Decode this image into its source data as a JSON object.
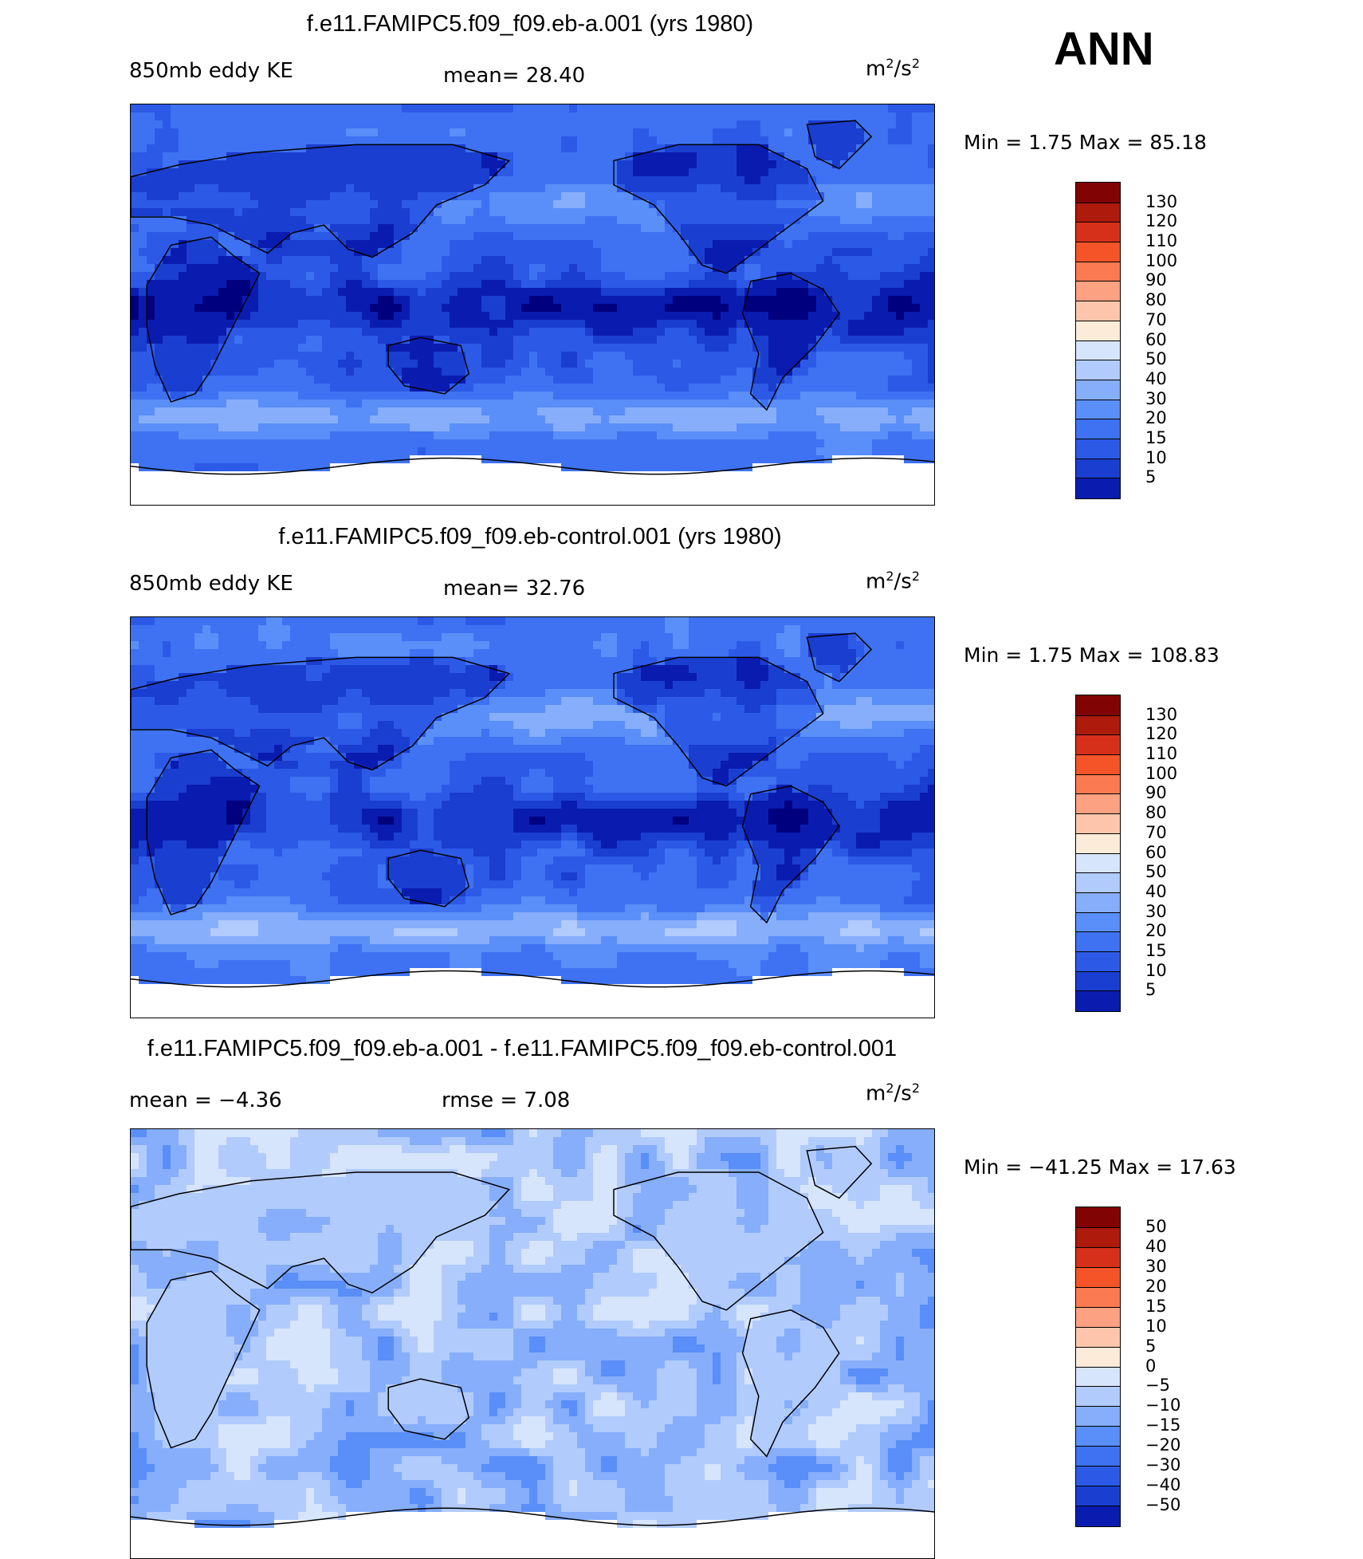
{
  "season": "ANN",
  "colors": {
    "scale": [
      "#00007e",
      "#0a1cb0",
      "#1a3ed0",
      "#2c5ae6",
      "#3e72f2",
      "#5a8ef8",
      "#86aefb",
      "#b1cbfc",
      "#d6e5fc",
      "#fcebd8",
      "#fdc6ac",
      "#fca182",
      "#fb7a52",
      "#f45428",
      "#d7301a",
      "#ae1a0c",
      "#820303"
    ],
    "land_mask": "#ffffff",
    "coast": "#000000"
  },
  "panels": [
    {
      "id": "top",
      "title": "f.e11.FAMIPC5.f09_f09.eb-a.001 (yrs 1980)",
      "left_label": "850mb  eddy  KE",
      "stat_label": "mean=   28.40",
      "units_base": "m",
      "units_sup1": "2",
      "units_mid": "/s",
      "units_sup2": "2",
      "minmax": "Min  =     1.75  Max  =   85.18",
      "colorbar_levels": [
        "130",
        "120",
        "110",
        "100",
        "90",
        "80",
        "70",
        "60",
        "50",
        "40",
        "30",
        "20",
        "15",
        "10",
        "5"
      ],
      "field": {
        "base": 20,
        "tropic": -13,
        "stormN": 34,
        "stormS": 44,
        "polarN": 14,
        "polarS": 18,
        "noise": 7
      }
    },
    {
      "id": "middle",
      "title": "f.e11.FAMIPC5.f09_f09.eb-control.001 (yrs 1980)",
      "left_label": "850mb  eddy  KE",
      "stat_label": "mean=   32.76",
      "units_base": "m",
      "units_sup1": "2",
      "units_mid": "/s",
      "units_sup2": "2",
      "minmax": "Min  =     1.75  Max  =  108.83",
      "colorbar_levels": [
        "130",
        "120",
        "110",
        "100",
        "90",
        "80",
        "70",
        "60",
        "50",
        "40",
        "30",
        "20",
        "15",
        "10",
        "5"
      ],
      "field": {
        "base": 22,
        "tropic": -13,
        "stormN": 40,
        "stormS": 50,
        "polarN": 14,
        "polarS": 18,
        "noise": 8
      }
    },
    {
      "id": "bottom",
      "title": "f.e11.FAMIPC5.f09_f09.eb-a.001 - f.e11.FAMIPC5.f09_f09.eb-control.001",
      "left_label": "mean  =   −4.36",
      "stat_label": "rmse  =     7.08",
      "units_base": "m",
      "units_sup1": "2",
      "units_mid": "/s",
      "units_sup2": "2",
      "minmax": "Min  =  −41.25  Max  =   17.63",
      "colorbar_levels": [
        "50",
        "40",
        "30",
        "20",
        "15",
        "10",
        "5",
        "0",
        "−5",
        "−10",
        "−15",
        "−20",
        "−30",
        "−40",
        "−50"
      ],
      "field": {
        "base": 0,
        "tropic": -3,
        "stormN": -4,
        "stormS": -6,
        "polarN": -4,
        "polarS": -5,
        "noise": 9
      }
    }
  ]
}
